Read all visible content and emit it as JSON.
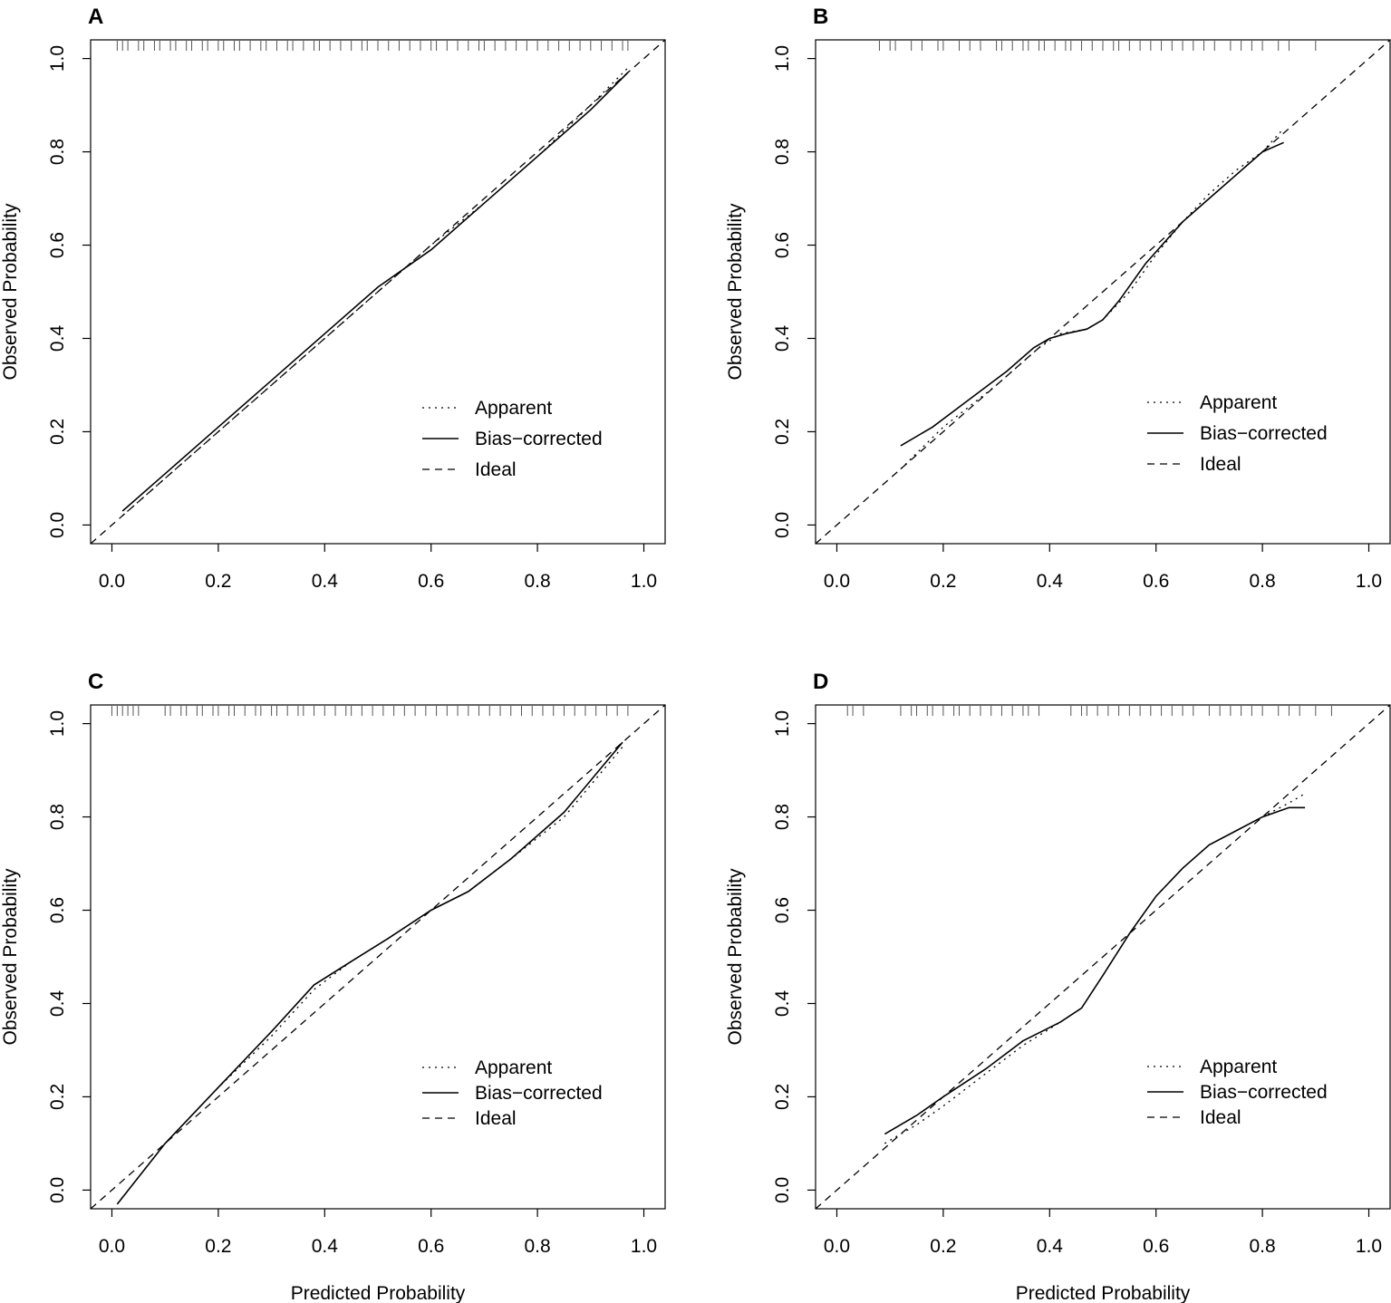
{
  "figure": {
    "xlabel": "Predicted Probability",
    "ylabel": "Observed Probability"
  },
  "chart_data": [
    {
      "panel": "A",
      "type": "line",
      "xlim": [
        -0.04,
        1.04
      ],
      "ylim": [
        -0.04,
        1.04
      ],
      "xticks": [
        "0.0",
        "0.2",
        "0.4",
        "0.6",
        "0.8",
        "1.0"
      ],
      "yticks": [
        "0.0",
        "0.2",
        "0.4",
        "0.6",
        "0.8",
        "1.0"
      ],
      "xlabel": "",
      "ylabel": "Observed Probability",
      "legend": [
        "Apparent",
        "Bias−corrected",
        "Ideal"
      ],
      "series": [
        {
          "name": "Apparent",
          "style": "dotted",
          "points": [
            [
              0.02,
              0.02
            ],
            [
              0.1,
              0.1
            ],
            [
              0.2,
              0.2
            ],
            [
              0.3,
              0.3
            ],
            [
              0.4,
              0.4
            ],
            [
              0.5,
              0.5
            ],
            [
              0.6,
              0.6
            ],
            [
              0.7,
              0.69
            ],
            [
              0.8,
              0.79
            ],
            [
              0.9,
              0.9
            ],
            [
              0.97,
              0.98
            ]
          ]
        },
        {
          "name": "Bias−corrected",
          "style": "solid",
          "points": [
            [
              0.02,
              0.03
            ],
            [
              0.1,
              0.11
            ],
            [
              0.2,
              0.21
            ],
            [
              0.3,
              0.31
            ],
            [
              0.4,
              0.41
            ],
            [
              0.5,
              0.51
            ],
            [
              0.6,
              0.59
            ],
            [
              0.7,
              0.69
            ],
            [
              0.8,
              0.79
            ],
            [
              0.9,
              0.89
            ],
            [
              0.97,
              0.97
            ]
          ]
        },
        {
          "name": "Ideal",
          "style": "dashed",
          "points": [
            [
              -0.04,
              -0.04
            ],
            [
              1.04,
              1.04
            ]
          ]
        }
      ],
      "rug": [
        0.01,
        0.02,
        0.03,
        0.05,
        0.06,
        0.08,
        0.09,
        0.11,
        0.12,
        0.14,
        0.15,
        0.17,
        0.18,
        0.2,
        0.21,
        0.23,
        0.24,
        0.26,
        0.28,
        0.29,
        0.31,
        0.33,
        0.34,
        0.36,
        0.38,
        0.39,
        0.41,
        0.43,
        0.45,
        0.47,
        0.48,
        0.5,
        0.52,
        0.54,
        0.56,
        0.58,
        0.6,
        0.61,
        0.63,
        0.65,
        0.67,
        0.69,
        0.7,
        0.72,
        0.74,
        0.76,
        0.78,
        0.8,
        0.82,
        0.84,
        0.86,
        0.88,
        0.9,
        0.92,
        0.94,
        0.96,
        0.97
      ]
    },
    {
      "panel": "B",
      "type": "line",
      "xlim": [
        -0.04,
        1.04
      ],
      "ylim": [
        -0.04,
        1.04
      ],
      "xticks": [
        "0.0",
        "0.2",
        "0.4",
        "0.6",
        "0.8",
        "1.0"
      ],
      "yticks": [
        "0.0",
        "0.2",
        "0.4",
        "0.6",
        "0.8",
        "1.0"
      ],
      "xlabel": "",
      "ylabel": "Observed Probability",
      "legend": [
        "Apparent",
        "Bias−corrected",
        "Ideal"
      ],
      "series": [
        {
          "name": "Apparent",
          "style": "dotted",
          "points": [
            [
              0.12,
              0.12
            ],
            [
              0.2,
              0.21
            ],
            [
              0.3,
              0.3
            ],
            [
              0.38,
              0.38
            ],
            [
              0.42,
              0.41
            ],
            [
              0.47,
              0.42
            ],
            [
              0.5,
              0.44
            ],
            [
              0.55,
              0.5
            ],
            [
              0.6,
              0.58
            ],
            [
              0.65,
              0.65
            ],
            [
              0.7,
              0.71
            ],
            [
              0.75,
              0.76
            ],
            [
              0.8,
              0.8
            ],
            [
              0.84,
              0.85
            ]
          ]
        },
        {
          "name": "Bias−corrected",
          "style": "solid",
          "points": [
            [
              0.12,
              0.17
            ],
            [
              0.18,
              0.21
            ],
            [
              0.25,
              0.27
            ],
            [
              0.32,
              0.33
            ],
            [
              0.37,
              0.38
            ],
            [
              0.4,
              0.4
            ],
            [
              0.43,
              0.41
            ],
            [
              0.47,
              0.42
            ],
            [
              0.5,
              0.44
            ],
            [
              0.53,
              0.48
            ],
            [
              0.58,
              0.56
            ],
            [
              0.65,
              0.65
            ],
            [
              0.7,
              0.7
            ],
            [
              0.75,
              0.75
            ],
            [
              0.8,
              0.8
            ],
            [
              0.84,
              0.82
            ]
          ]
        },
        {
          "name": "Ideal",
          "style": "dashed",
          "points": [
            [
              -0.04,
              -0.04
            ],
            [
              1.04,
              1.04
            ]
          ]
        }
      ],
      "rug": [
        0.08,
        0.1,
        0.11,
        0.14,
        0.16,
        0.19,
        0.2,
        0.23,
        0.25,
        0.27,
        0.3,
        0.31,
        0.33,
        0.35,
        0.36,
        0.38,
        0.39,
        0.41,
        0.43,
        0.44,
        0.46,
        0.48,
        0.5,
        0.52,
        0.53,
        0.55,
        0.57,
        0.59,
        0.61,
        0.63,
        0.65,
        0.67,
        0.69,
        0.71,
        0.74,
        0.76,
        0.78,
        0.8,
        0.83,
        0.85,
        0.9
      ]
    },
    {
      "panel": "C",
      "type": "line",
      "xlim": [
        -0.04,
        1.04
      ],
      "ylim": [
        -0.04,
        1.04
      ],
      "xticks": [
        "0.0",
        "0.2",
        "0.4",
        "0.6",
        "0.8",
        "1.0"
      ],
      "yticks": [
        "0.0",
        "0.2",
        "0.4",
        "0.6",
        "0.8",
        "1.0"
      ],
      "xlabel": "Predicted Probability",
      "ylabel": "Observed Probability",
      "legend": [
        "Apparent",
        "Bias−corrected",
        "Ideal"
      ],
      "series": [
        {
          "name": "Apparent",
          "style": "dotted",
          "points": [
            [
              0.01,
              -0.03
            ],
            [
              0.1,
              0.1
            ],
            [
              0.2,
              0.22
            ],
            [
              0.3,
              0.33
            ],
            [
              0.38,
              0.43
            ],
            [
              0.45,
              0.49
            ],
            [
              0.52,
              0.54
            ],
            [
              0.6,
              0.6
            ],
            [
              0.67,
              0.64
            ],
            [
              0.75,
              0.71
            ],
            [
              0.85,
              0.8
            ],
            [
              0.96,
              0.95
            ]
          ]
        },
        {
          "name": "Bias−corrected",
          "style": "solid",
          "points": [
            [
              0.01,
              -0.03
            ],
            [
              0.1,
              0.1
            ],
            [
              0.2,
              0.22
            ],
            [
              0.3,
              0.34
            ],
            [
              0.38,
              0.44
            ],
            [
              0.45,
              0.49
            ],
            [
              0.52,
              0.54
            ],
            [
              0.6,
              0.6
            ],
            [
              0.67,
              0.64
            ],
            [
              0.75,
              0.71
            ],
            [
              0.85,
              0.81
            ],
            [
              0.96,
              0.96
            ]
          ]
        },
        {
          "name": "Ideal",
          "style": "dashed",
          "points": [
            [
              -0.04,
              -0.04
            ],
            [
              1.04,
              1.04
            ]
          ]
        }
      ],
      "rug": [
        0.0,
        0.01,
        0.02,
        0.03,
        0.04,
        0.05,
        0.1,
        0.11,
        0.13,
        0.14,
        0.16,
        0.17,
        0.19,
        0.2,
        0.22,
        0.23,
        0.25,
        0.27,
        0.28,
        0.3,
        0.31,
        0.33,
        0.35,
        0.36,
        0.38,
        0.4,
        0.42,
        0.44,
        0.45,
        0.47,
        0.49,
        0.51,
        0.53,
        0.55,
        0.57,
        0.59,
        0.61,
        0.63,
        0.65,
        0.67,
        0.69,
        0.71,
        0.73,
        0.75,
        0.77,
        0.79,
        0.81,
        0.83,
        0.85,
        0.87,
        0.89,
        0.91,
        0.93,
        0.95,
        0.97
      ]
    },
    {
      "panel": "D",
      "type": "line",
      "xlim": [
        -0.04,
        1.04
      ],
      "ylim": [
        -0.04,
        1.04
      ],
      "xticks": [
        "0.0",
        "0.2",
        "0.4",
        "0.6",
        "0.8",
        "1.0"
      ],
      "yticks": [
        "0.0",
        "0.2",
        "0.4",
        "0.6",
        "0.8",
        "1.0"
      ],
      "xlabel": "Predicted Probability",
      "ylabel": "Observed Probability",
      "legend": [
        "Apparent",
        "Bias−corrected",
        "Ideal"
      ],
      "series": [
        {
          "name": "Apparent",
          "style": "dotted",
          "points": [
            [
              0.09,
              0.1
            ],
            [
              0.15,
              0.14
            ],
            [
              0.2,
              0.18
            ],
            [
              0.28,
              0.25
            ],
            [
              0.35,
              0.31
            ],
            [
              0.42,
              0.36
            ],
            [
              0.46,
              0.39
            ],
            [
              0.5,
              0.46
            ],
            [
              0.55,
              0.55
            ],
            [
              0.6,
              0.63
            ],
            [
              0.65,
              0.69
            ],
            [
              0.7,
              0.74
            ],
            [
              0.75,
              0.77
            ],
            [
              0.8,
              0.8
            ],
            [
              0.85,
              0.83
            ],
            [
              0.88,
              0.85
            ]
          ]
        },
        {
          "name": "Bias−corrected",
          "style": "solid",
          "points": [
            [
              0.09,
              0.12
            ],
            [
              0.15,
              0.16
            ],
            [
              0.2,
              0.2
            ],
            [
              0.28,
              0.26
            ],
            [
              0.35,
              0.32
            ],
            [
              0.42,
              0.36
            ],
            [
              0.46,
              0.39
            ],
            [
              0.5,
              0.46
            ],
            [
              0.55,
              0.55
            ],
            [
              0.6,
              0.63
            ],
            [
              0.65,
              0.69
            ],
            [
              0.7,
              0.74
            ],
            [
              0.75,
              0.77
            ],
            [
              0.8,
              0.8
            ],
            [
              0.85,
              0.82
            ],
            [
              0.88,
              0.82
            ]
          ]
        },
        {
          "name": "Ideal",
          "style": "dashed",
          "points": [
            [
              -0.04,
              -0.04
            ],
            [
              1.04,
              1.04
            ]
          ]
        }
      ],
      "rug": [
        0.02,
        0.03,
        0.05,
        0.12,
        0.14,
        0.15,
        0.17,
        0.18,
        0.2,
        0.22,
        0.23,
        0.25,
        0.27,
        0.29,
        0.31,
        0.33,
        0.35,
        0.36,
        0.38,
        0.44,
        0.46,
        0.47,
        0.49,
        0.51,
        0.53,
        0.55,
        0.57,
        0.59,
        0.61,
        0.63,
        0.65,
        0.67,
        0.7,
        0.72,
        0.74,
        0.76,
        0.78,
        0.8,
        0.83,
        0.85,
        0.87,
        0.9,
        0.93
      ]
    }
  ]
}
